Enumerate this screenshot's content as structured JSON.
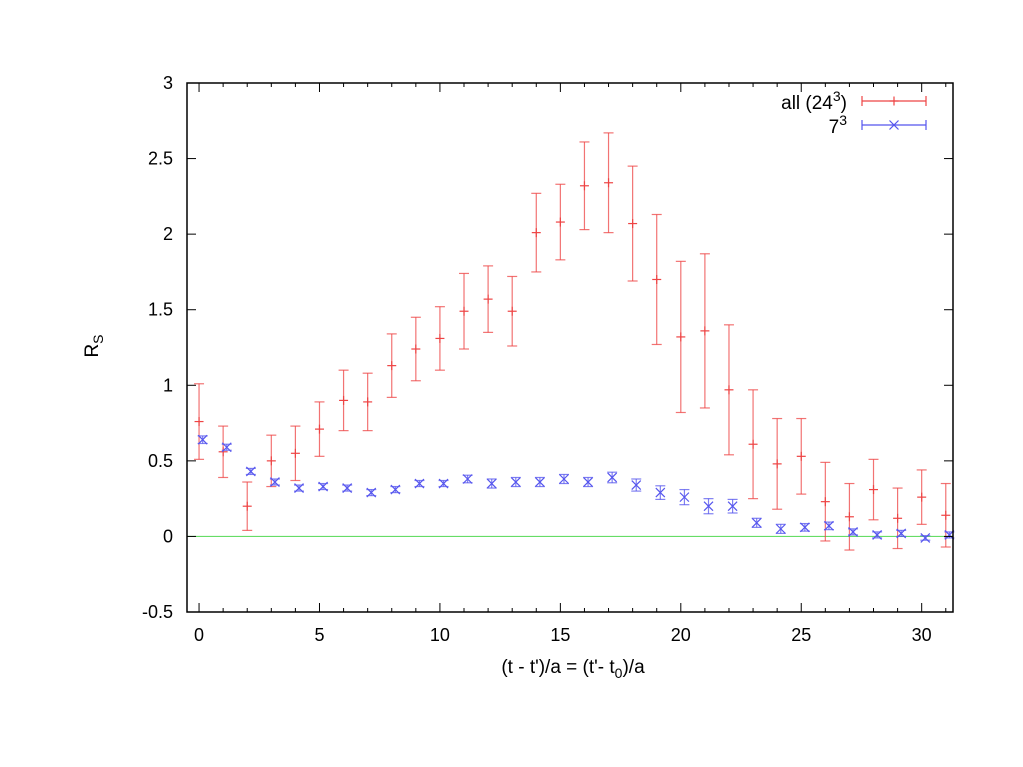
{
  "chart_data": {
    "type": "scatter",
    "title": "",
    "xlabel": {
      "main": "(t - t')/a = (t'- t",
      "sub": "0",
      "tail": ")/a"
    },
    "ylabel": {
      "main": "R",
      "sub": "S"
    },
    "xlim": [
      -0.5,
      31.3
    ],
    "ylim": [
      -0.5,
      3
    ],
    "xticks": [
      0,
      5,
      10,
      15,
      20,
      25,
      30
    ],
    "yticks": [
      -0.5,
      0,
      0.5,
      1,
      1.5,
      2,
      2.5,
      3
    ],
    "ytick_labels": [
      "-0.5",
      "0",
      "0.5",
      "1",
      "1.5",
      "2",
      "2.5",
      "3"
    ],
    "reference_line": {
      "y": 0,
      "color": "#66dd66"
    },
    "grid": false,
    "legend_position": "top-right",
    "series": [
      {
        "name": "all (24",
        "name_sup": "3",
        "name_tail": ")",
        "marker": "plus",
        "color": "#ee4444",
        "x": [
          0,
          1,
          2,
          3,
          4,
          5,
          6,
          7,
          8,
          9,
          10,
          11,
          12,
          13,
          14,
          15,
          16,
          17,
          18,
          19,
          20,
          21,
          22,
          23,
          24,
          25,
          26,
          27,
          28,
          29,
          30,
          31
        ],
        "y": [
          0.76,
          0.56,
          0.2,
          0.5,
          0.55,
          0.71,
          0.9,
          0.89,
          1.13,
          1.24,
          1.31,
          1.49,
          1.57,
          1.49,
          2.01,
          2.08,
          2.32,
          2.34,
          2.07,
          1.7,
          1.32,
          1.36,
          0.97,
          0.61,
          0.48,
          0.53,
          0.23,
          0.13,
          0.31,
          0.12,
          0.26,
          0.14
        ],
        "err": [
          0.25,
          0.17,
          0.16,
          0.17,
          0.18,
          0.18,
          0.2,
          0.19,
          0.21,
          0.21,
          0.21,
          0.25,
          0.22,
          0.23,
          0.26,
          0.25,
          0.29,
          0.33,
          0.38,
          0.43,
          0.5,
          0.51,
          0.43,
          0.36,
          0.3,
          0.25,
          0.26,
          0.22,
          0.2,
          0.2,
          0.18,
          0.21
        ]
      },
      {
        "name": "7",
        "name_sup": "3",
        "name_tail": "",
        "marker": "cross",
        "color": "#5555ee",
        "x": [
          0.15,
          1.15,
          2.15,
          3.15,
          4.15,
          5.15,
          6.15,
          7.15,
          8.15,
          9.15,
          10.15,
          11.15,
          12.15,
          13.15,
          14.15,
          15.15,
          16.15,
          17.15,
          18.15,
          19.15,
          20.15,
          21.15,
          22.15,
          23.15,
          24.15,
          25.15,
          26.15,
          27.15,
          28.15,
          29.15,
          30.15,
          31.15
        ],
        "y": [
          0.64,
          0.59,
          0.43,
          0.36,
          0.32,
          0.33,
          0.32,
          0.29,
          0.31,
          0.35,
          0.35,
          0.38,
          0.35,
          0.36,
          0.36,
          0.38,
          0.36,
          0.39,
          0.34,
          0.29,
          0.26,
          0.2,
          0.2,
          0.09,
          0.05,
          0.06,
          0.07,
          0.03,
          0.01,
          0.02,
          -0.01,
          0.01
        ],
        "err": [
          0.025,
          0.02,
          0.02,
          0.02,
          0.02,
          0.02,
          0.02,
          0.02,
          0.02,
          0.02,
          0.02,
          0.025,
          0.03,
          0.03,
          0.03,
          0.03,
          0.03,
          0.035,
          0.04,
          0.045,
          0.05,
          0.05,
          0.045,
          0.03,
          0.03,
          0.025,
          0.025,
          0.02,
          0.02,
          0.02,
          0.015,
          0.02
        ]
      }
    ]
  }
}
